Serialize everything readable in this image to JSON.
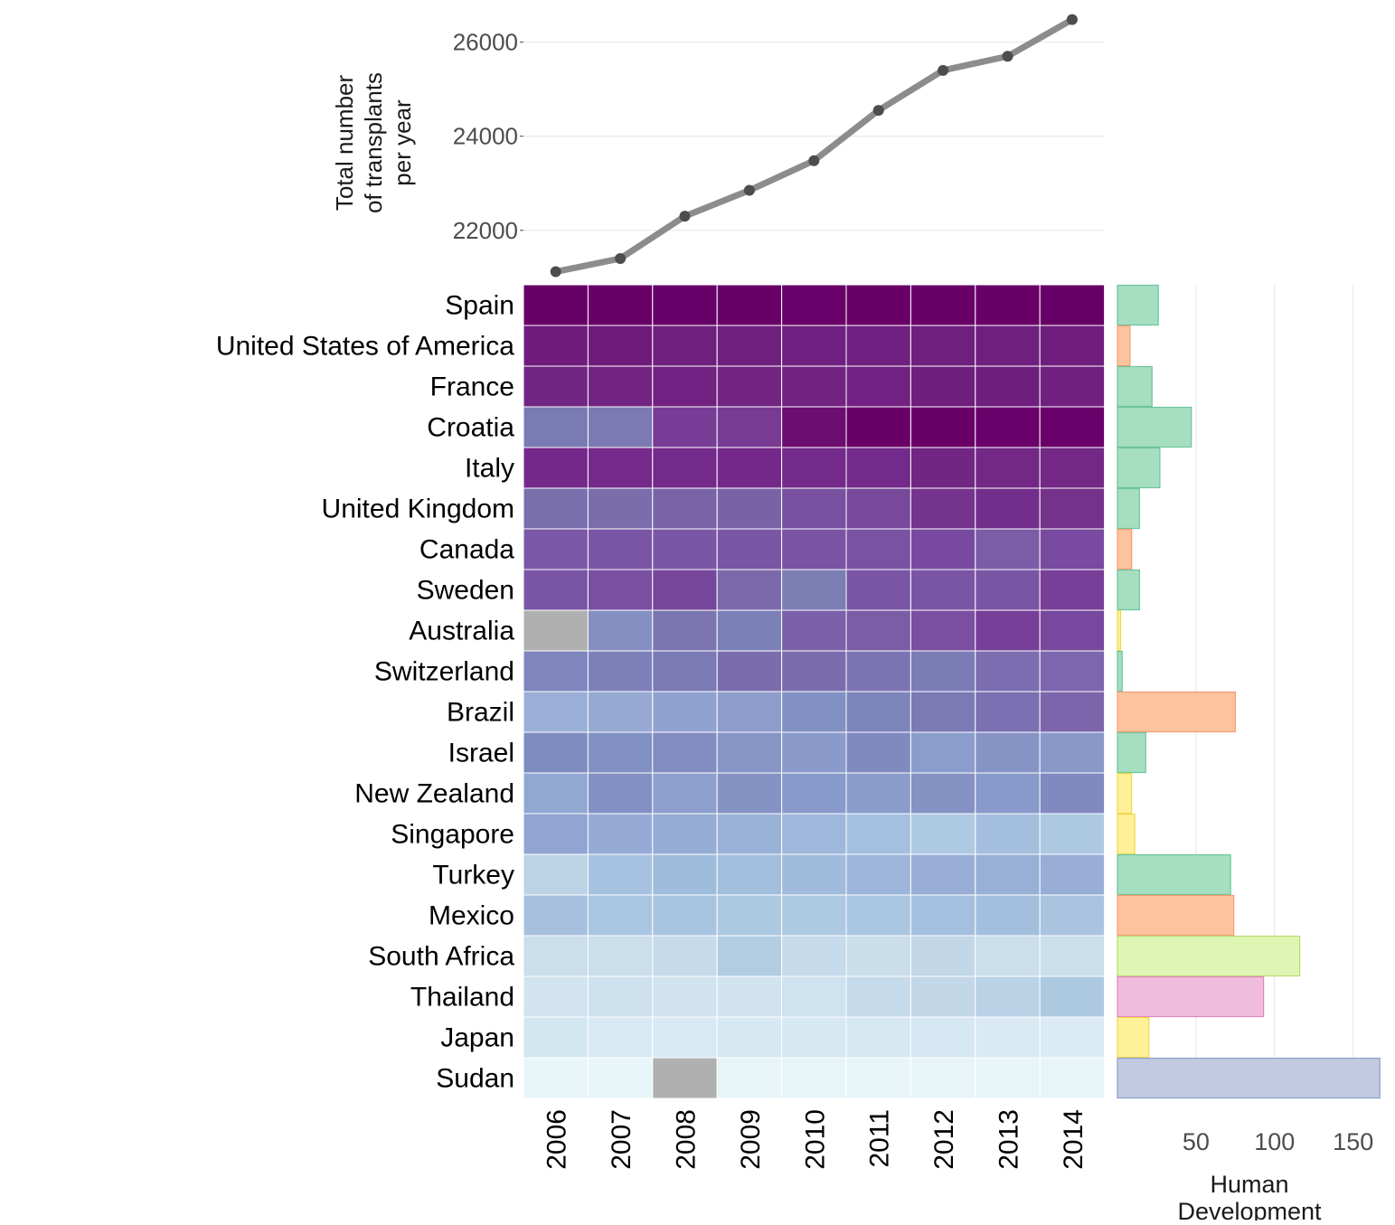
{
  "chart_data": [
    {
      "type": "line",
      "ylabel_lines": [
        "Total number",
        "of transplants",
        "per year"
      ],
      "x": [
        "2006",
        "2007",
        "2008",
        "2009",
        "2010",
        "2011",
        "2012",
        "2013",
        "2014"
      ],
      "values": [
        21120,
        21400,
        22300,
        22850,
        23480,
        24550,
        25400,
        25700,
        26480
      ],
      "yticks": [
        22000,
        24000,
        26000
      ],
      "ytick_labels": [
        "22000",
        "24000",
        "26000"
      ],
      "ylim": [
        20900,
        26800
      ],
      "color": "#8c8c8c"
    },
    {
      "type": "heatmap",
      "countries": [
        "Spain",
        "United States of America",
        "France",
        "Croatia",
        "Italy",
        "United Kingdom",
        "Canada",
        "Sweden",
        "Australia",
        "Switzerland",
        "Brazil",
        "Israel",
        "New Zealand",
        "Singapore",
        "Turkey",
        "Mexico",
        "South Africa",
        "Thailand",
        "Japan",
        "Sudan"
      ],
      "years": [
        "2006",
        "2007",
        "2008",
        "2009",
        "2010",
        "2011",
        "2012",
        "2013",
        "2014"
      ],
      "colors": [
        [
          "#670066",
          "#690068",
          "#68006a",
          "#690068",
          "#6a0069",
          "#680066",
          "#680068",
          "#690068",
          "#670066"
        ],
        [
          "#6f1c7d",
          "#6f1b7c",
          "#6e207e",
          "#6f207f",
          "#702080",
          "#702080",
          "#6f1f7e",
          "#6f1f7e",
          "#6f1e7e"
        ],
        [
          "#712683",
          "#722482",
          "#712181",
          "#722483",
          "#722382",
          "#712282",
          "#6e1f7e",
          "#6e1f7e",
          "#702180"
        ],
        [
          "#7a7bb3",
          "#7b7ab2",
          "#773c95",
          "#783b94",
          "#6c0e6f",
          "#690068",
          "#690068",
          "#6a006a",
          "#6a0069"
        ],
        [
          "#74298a",
          "#75298b",
          "#742a8b",
          "#74298a",
          "#732a8a",
          "#732a8a",
          "#712683",
          "#722884",
          "#722884"
        ],
        [
          "#7a6fad",
          "#7a6dab",
          "#7964a8",
          "#7962a6",
          "#7850a0",
          "#78499b",
          "#74338c",
          "#732d8a",
          "#74328b"
        ],
        [
          "#7a58a6",
          "#7a55a4",
          "#7a57a5",
          "#7a56a4",
          "#7a53a3",
          "#7a52a2",
          "#774a9f",
          "#7b5ca7",
          "#784aa0"
        ],
        [
          "#7a55a4",
          "#7a4fa1",
          "#76469b",
          "#7c69ac",
          "#7b7db3",
          "#7a55a4",
          "#7a55a4",
          "#7a55a4",
          "#773f97"
        ],
        [
          "#b0b0b0",
          "#8590c2",
          "#7b76b2",
          "#7b80b7",
          "#7a61a9",
          "#7a5ca7",
          "#7a4ea1",
          "#773f97",
          "#77489d"
        ],
        [
          "#7f86bd",
          "#7d80b9",
          "#7b7ab5",
          "#7b6cae",
          "#7b6cae",
          "#7c74b2",
          "#7b7bb5",
          "#7c6db0",
          "#7c66ad"
        ],
        [
          "#9aafd7",
          "#95a9d3",
          "#90a2cf",
          "#8d9ccb",
          "#8291c3",
          "#7c84bc",
          "#7b7ab5",
          "#7b70b1",
          "#7b66ac"
        ],
        [
          "#7f8cc0",
          "#8291c3",
          "#818cc0",
          "#8595c6",
          "#8a9bcb",
          "#7f8ac0",
          "#8b9dcc",
          "#8694c5",
          "#8899c9"
        ],
        [
          "#91a8d3",
          "#8390c3",
          "#8da0cd",
          "#8492c4",
          "#889acb",
          "#8a9ccc",
          "#8592c4",
          "#889acb",
          "#8089c0"
        ],
        [
          "#91a4d2",
          "#95abd5",
          "#95acd5",
          "#9ab2d7",
          "#9fb7da",
          "#a5c0de",
          "#aec9e2",
          "#a4bedd",
          "#adc8e1"
        ],
        [
          "#bcd3e5",
          "#a6c2e0",
          "#a0bcdd",
          "#a1bedd",
          "#a0bbdc",
          "#9db5da",
          "#98aed7",
          "#98afd6",
          "#98aed7"
        ],
        [
          "#a6c0de",
          "#a9c5e1",
          "#a8c4e0",
          "#adc9e1",
          "#aecae2",
          "#aac6e1",
          "#a4c0de",
          "#a3bfdd",
          "#aac4e0"
        ],
        [
          "#cbdeeb",
          "#cadeeb",
          "#c6dbea",
          "#b2cde2",
          "#c5daea",
          "#c9ddeb",
          "#c2d7e8",
          "#cbdeec",
          "#cadeeb"
        ],
        [
          "#d1e4ef",
          "#cde1ee",
          "#d0e3ef",
          "#d1e3ef",
          "#cfe2ef",
          "#c5daea",
          "#c2d7e8",
          "#b9d2e6",
          "#adc9e0"
        ],
        [
          "#d3e7f1",
          "#d8e9f3",
          "#d8e9f3",
          "#d6e8f2",
          "#d6e8f2",
          "#d6e8f2",
          "#d5e7f2",
          "#d9eaf3",
          "#dbebf4"
        ],
        [
          "#e8f5f9",
          "#e8f5f8",
          "#b0b0b0",
          "#e8f5f8",
          "#e8f5f8",
          "#e8f5f8",
          "#e8f5f8",
          "#e8f5f8",
          "#e8f5f8"
        ]
      ]
    },
    {
      "type": "bar",
      "orientation": "horizontal",
      "title": "",
      "xlabel_lines": [
        "Human",
        "Development"
      ],
      "categories": [
        "Spain",
        "United States of America",
        "France",
        "Croatia",
        "Italy",
        "United Kingdom",
        "Canada",
        "Sweden",
        "Australia",
        "Switzerland",
        "Brazil",
        "Israel",
        "New Zealand",
        "Singapore",
        "Turkey",
        "Mexico",
        "South Africa",
        "Thailand",
        "Japan",
        "Sudan"
      ],
      "values": [
        26,
        8,
        22,
        47,
        27,
        14,
        9,
        14,
        2,
        3,
        75,
        18,
        9,
        11,
        72,
        74,
        116,
        93,
        20,
        167
      ],
      "fills": [
        "#a6dec2",
        "#fbc49e",
        "#a6dec2",
        "#a6dec2",
        "#a6dec2",
        "#a6dec2",
        "#fbc49e",
        "#a6dec2",
        "#fff09a",
        "#a6dec2",
        "#fbc49e",
        "#a6dec2",
        "#fff09a",
        "#fff09a",
        "#a6dec2",
        "#fbc49e",
        "#dff5b4",
        "#efbcdc",
        "#fff09a",
        "#c2cae2"
      ],
      "strokes": [
        "#6cc59c",
        "#f69b72",
        "#6cc59c",
        "#6cc59c",
        "#6cc59c",
        "#6cc59c",
        "#f69b72",
        "#6cc59c",
        "#f0d84a",
        "#6cc59c",
        "#f69b72",
        "#6cc59c",
        "#f0d84a",
        "#f0d84a",
        "#6cc59c",
        "#f69b72",
        "#b4de6c",
        "#de84c0",
        "#f0d84a",
        "#8c9fcb"
      ],
      "xticks": [
        50,
        100,
        150
      ],
      "xtick_labels": [
        "50",
        "100",
        "150"
      ],
      "xlim": [
        0,
        168
      ]
    }
  ]
}
